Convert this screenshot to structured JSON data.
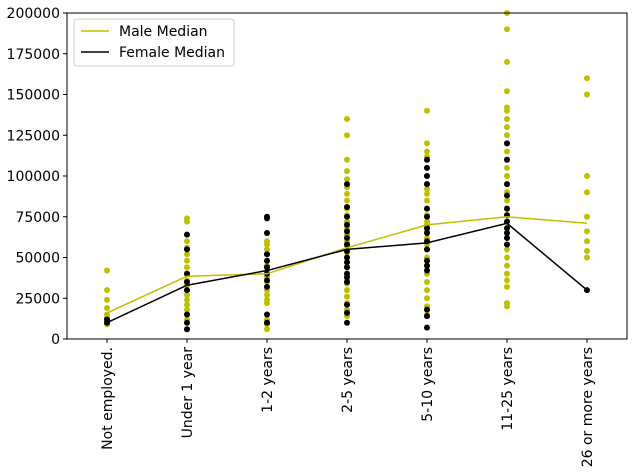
{
  "chart_data": {
    "type": "scatter",
    "categories": [
      "Not employed.",
      "Under 1 year",
      "1-2 years",
      "2-5 years",
      "5-10 years",
      "11-25 years",
      "26 or more years"
    ],
    "ylim": [
      0,
      200000
    ],
    "yticks": [
      0,
      25000,
      50000,
      75000,
      100000,
      125000,
      150000,
      175000,
      200000
    ],
    "grid": false,
    "legend": {
      "position": "top-left"
    },
    "colors": {
      "male": "#bfbf00",
      "female": "#000000"
    },
    "series": [
      {
        "name": "Male Median",
        "style": "line",
        "color": "#bfbf00",
        "values": [
          16000,
          38500,
          40000,
          56000,
          70000,
          75000,
          71000
        ]
      },
      {
        "name": "Female Median",
        "style": "line",
        "color": "#000000",
        "values": [
          10000,
          33000,
          42000,
          55000,
          59000,
          71000,
          30000
        ]
      },
      {
        "style": "points",
        "color": "#bfbf00",
        "points": [
          [
            0,
            42000
          ],
          [
            0,
            30000
          ],
          [
            0,
            24000
          ],
          [
            0,
            19000
          ],
          [
            0,
            15000
          ],
          [
            0,
            13000
          ],
          [
            0,
            11000
          ],
          [
            0,
            9000
          ],
          [
            1,
            74000
          ],
          [
            1,
            72000
          ],
          [
            1,
            60000
          ],
          [
            1,
            56000
          ],
          [
            1,
            52000
          ],
          [
            1,
            48000
          ],
          [
            1,
            44000
          ],
          [
            1,
            40000
          ],
          [
            1,
            36000
          ],
          [
            1,
            33000
          ],
          [
            1,
            30000
          ],
          [
            1,
            27000
          ],
          [
            1,
            24000
          ],
          [
            1,
            21000
          ],
          [
            1,
            18000
          ],
          [
            1,
            15000
          ],
          [
            1,
            12000
          ],
          [
            2,
            65000
          ],
          [
            2,
            60000
          ],
          [
            2,
            58000
          ],
          [
            2,
            55000
          ],
          [
            2,
            52000
          ],
          [
            2,
            48000
          ],
          [
            2,
            45000
          ],
          [
            2,
            42000
          ],
          [
            2,
            40000
          ],
          [
            2,
            38000
          ],
          [
            2,
            35000
          ],
          [
            2,
            32000
          ],
          [
            2,
            30000
          ],
          [
            2,
            27000
          ],
          [
            2,
            24000
          ],
          [
            2,
            22000
          ],
          [
            2,
            12000
          ],
          [
            2,
            9000
          ],
          [
            2,
            6000
          ],
          [
            3,
            135000
          ],
          [
            3,
            125000
          ],
          [
            3,
            110000
          ],
          [
            3,
            103000
          ],
          [
            3,
            98000
          ],
          [
            3,
            93000
          ],
          [
            3,
            89000
          ],
          [
            3,
            85000
          ],
          [
            3,
            80000
          ],
          [
            3,
            76000
          ],
          [
            3,
            72000
          ],
          [
            3,
            68000
          ],
          [
            3,
            64000
          ],
          [
            3,
            60000
          ],
          [
            3,
            57000
          ],
          [
            3,
            53000
          ],
          [
            3,
            50000
          ],
          [
            3,
            47000
          ],
          [
            3,
            44000
          ],
          [
            3,
            40000
          ],
          [
            3,
            37000
          ],
          [
            3,
            34000
          ],
          [
            3,
            30000
          ],
          [
            3,
            26000
          ],
          [
            3,
            22000
          ],
          [
            3,
            18000
          ],
          [
            3,
            14000
          ],
          [
            4,
            140000
          ],
          [
            4,
            120000
          ],
          [
            4,
            115000
          ],
          [
            4,
            112000
          ],
          [
            4,
            105000
          ],
          [
            4,
            100000
          ],
          [
            4,
            95000
          ],
          [
            4,
            92000
          ],
          [
            4,
            89000
          ],
          [
            4,
            85000
          ],
          [
            4,
            80000
          ],
          [
            4,
            76000
          ],
          [
            4,
            72000
          ],
          [
            4,
            70000
          ],
          [
            4,
            66000
          ],
          [
            4,
            62000
          ],
          [
            4,
            58000
          ],
          [
            4,
            55000
          ],
          [
            4,
            50000
          ],
          [
            4,
            45000
          ],
          [
            4,
            40000
          ],
          [
            4,
            35000
          ],
          [
            4,
            30000
          ],
          [
            4,
            25000
          ],
          [
            4,
            20000
          ],
          [
            4,
            15000
          ],
          [
            5,
            200000
          ],
          [
            5,
            190000
          ],
          [
            5,
            170000
          ],
          [
            5,
            152000
          ],
          [
            5,
            142000
          ],
          [
            5,
            140000
          ],
          [
            5,
            135000
          ],
          [
            5,
            130000
          ],
          [
            5,
            125000
          ],
          [
            5,
            120000
          ],
          [
            5,
            115000
          ],
          [
            5,
            110000
          ],
          [
            5,
            105000
          ],
          [
            5,
            100000
          ],
          [
            5,
            95000
          ],
          [
            5,
            90000
          ],
          [
            5,
            88000
          ],
          [
            5,
            85000
          ],
          [
            5,
            80000
          ],
          [
            5,
            76000
          ],
          [
            5,
            72000
          ],
          [
            5,
            68000
          ],
          [
            5,
            65000
          ],
          [
            5,
            62000
          ],
          [
            5,
            58000
          ],
          [
            5,
            55000
          ],
          [
            5,
            50000
          ],
          [
            5,
            45000
          ],
          [
            5,
            40000
          ],
          [
            5,
            36000
          ],
          [
            5,
            32000
          ],
          [
            5,
            22000
          ],
          [
            5,
            20000
          ],
          [
            6,
            160000
          ],
          [
            6,
            150000
          ],
          [
            6,
            100000
          ],
          [
            6,
            90000
          ],
          [
            6,
            75000
          ],
          [
            6,
            66000
          ],
          [
            6,
            60000
          ],
          [
            6,
            54000
          ],
          [
            6,
            50000
          ]
        ]
      },
      {
        "style": "points",
        "color": "#000000",
        "points": [
          [
            0,
            12000
          ],
          [
            0,
            10000
          ],
          [
            1,
            64000
          ],
          [
            1,
            55000
          ],
          [
            1,
            40000
          ],
          [
            1,
            35000
          ],
          [
            1,
            30000
          ],
          [
            1,
            15000
          ],
          [
            1,
            10000
          ],
          [
            1,
            6000
          ],
          [
            2,
            75000
          ],
          [
            2,
            74000
          ],
          [
            2,
            65000
          ],
          [
            2,
            52000
          ],
          [
            2,
            48000
          ],
          [
            2,
            44000
          ],
          [
            2,
            40000
          ],
          [
            2,
            36000
          ],
          [
            2,
            32000
          ],
          [
            2,
            15000
          ],
          [
            2,
            10000
          ],
          [
            3,
            95000
          ],
          [
            3,
            81000
          ],
          [
            3,
            75000
          ],
          [
            3,
            70000
          ],
          [
            3,
            66000
          ],
          [
            3,
            62000
          ],
          [
            3,
            58000
          ],
          [
            3,
            54000
          ],
          [
            3,
            50000
          ],
          [
            3,
            47000
          ],
          [
            3,
            44000
          ],
          [
            3,
            40000
          ],
          [
            3,
            38000
          ],
          [
            3,
            35000
          ],
          [
            3,
            21000
          ],
          [
            3,
            16000
          ],
          [
            3,
            10000
          ],
          [
            4,
            110000
          ],
          [
            4,
            105000
          ],
          [
            4,
            100000
          ],
          [
            4,
            95000
          ],
          [
            4,
            80000
          ],
          [
            4,
            75000
          ],
          [
            4,
            68000
          ],
          [
            4,
            65000
          ],
          [
            4,
            60000
          ],
          [
            4,
            55000
          ],
          [
            4,
            48000
          ],
          [
            4,
            45000
          ],
          [
            4,
            42000
          ],
          [
            4,
            18000
          ],
          [
            4,
            14000
          ],
          [
            4,
            7000
          ],
          [
            5,
            120000
          ],
          [
            5,
            110000
          ],
          [
            5,
            95000
          ],
          [
            5,
            88000
          ],
          [
            5,
            80000
          ],
          [
            5,
            76000
          ],
          [
            5,
            72000
          ],
          [
            5,
            68000
          ],
          [
            5,
            65000
          ],
          [
            5,
            62000
          ],
          [
            5,
            58000
          ],
          [
            6,
            30000
          ]
        ]
      }
    ]
  }
}
